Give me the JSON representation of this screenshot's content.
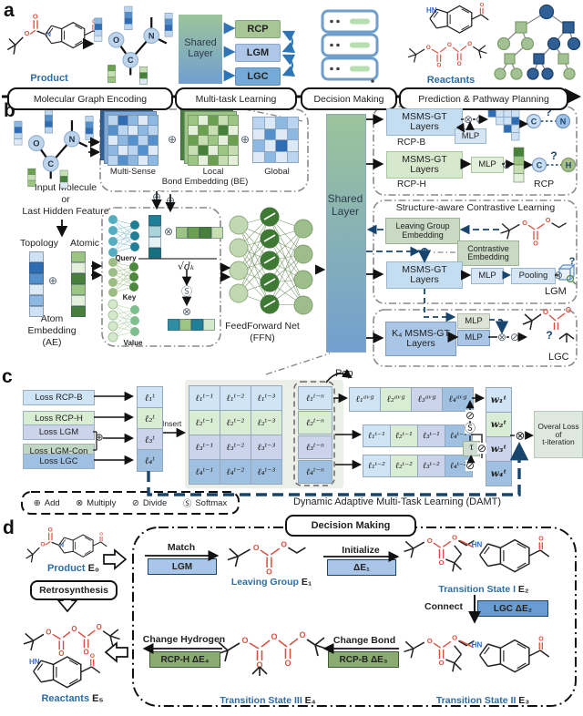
{
  "ops": {
    "add": "⊕",
    "mul": "⊗",
    "div": "⊘",
    "softmax": "Ⓢ"
  },
  "atoms": {
    "o": "O",
    "c": "C",
    "n": "N",
    "h": "H",
    "hn": "HN",
    "q": "?"
  },
  "panel_letters": {
    "a": "a",
    "b": "b",
    "c": "c",
    "d": "d"
  },
  "panel_a": {
    "product_label": "Product",
    "reactants_label": "Reactants",
    "shared_layer": "Shared Layer",
    "tasks": [
      "RCP",
      "LGM",
      "LGC"
    ],
    "pipeline": [
      "Molecular Graph Encoding",
      "Multi-task Learning",
      "Decision Making",
      "Prediction & Pathway Planning"
    ]
  },
  "panel_b": {
    "input_caption_1": "Input Molecule",
    "input_caption_2": "or",
    "input_caption_3": "Last Hidden Feature",
    "topology": "Topology",
    "atomic": "Atomic",
    "ae_caption_1": "Atom",
    "ae_caption_2": "Embedding",
    "ae_caption_3": "(AE)",
    "be": {
      "multi_sense": "Multi-Sense",
      "local": "Local",
      "global": "Global",
      "caption": "Bond Embedding (BE)"
    },
    "attn": {
      "query": "Query",
      "key": "Key",
      "value": "Value",
      "scale": "√dₖ"
    },
    "ffn_caption_1": "FeedForward Net",
    "ffn_caption_2": "(FFN)",
    "shared_layer": "Shared Layer",
    "rcp": {
      "msms_gt_b": "MSMS-GT Layers",
      "rcp_b": "RCP-B",
      "mlp_b": "MLP",
      "msms_gt_h": "MSMS-GT Layers",
      "mlp_h": "MLP",
      "rcp_h": "RCP-H",
      "rcp": "RCP"
    },
    "scl": {
      "title": "Structure-aware Contrastive Learning",
      "lg_embedding": "Leaving Group Embedding",
      "contrastive": "Contrastive Embedding",
      "msms_gt": "MSMS-GT Layers",
      "mlp": "MLP",
      "pooling": "Pooling",
      "label": "LGM"
    },
    "lgc": {
      "k4": "K₄ MSMS-GT Layers",
      "mlp_top": "MLP",
      "mlp": "MLP",
      "label": "LGC"
    }
  },
  "panel_c": {
    "losses": [
      "Loss RCP-B",
      "Loss RCP-H",
      "Loss LGM",
      "Loss LGM-Con",
      "Loss LGC"
    ],
    "lt": [
      "ℓ₁ᵗ",
      "ℓ₂ᵗ",
      "ℓ₃ᵗ",
      "ℓ₄ᵗ"
    ],
    "insert": "Insert",
    "pop": "Pop",
    "dots": "......",
    "hist": [
      [
        "ℓ₁ᵗ⁻¹",
        "ℓ₁ᵗ⁻²",
        "ℓ₁ᵗ⁻³"
      ],
      [
        "ℓ₂ᵗ⁻¹",
        "ℓ₂ᵗ⁻²",
        "ℓ₂ᵗ⁻³"
      ],
      [
        "ℓ₃ᵗ⁻¹",
        "ℓ₃ᵗ⁻²",
        "ℓ₃ᵗ⁻³"
      ],
      [
        "ℓ₄ᵗ⁻¹",
        "ℓ₄ᵗ⁻²",
        "ℓ₄ᵗ⁻³"
      ]
    ],
    "popcol": [
      "ℓ₁ᵗ⁻ⁿ",
      "ℓ₂ᵗ⁻ⁿ",
      "ℓ₃ᵗ⁻ⁿ",
      "ℓ₄ᵗ⁻ⁿ"
    ],
    "avg": [
      "ℓ₁ᵃᵛᵍ",
      "ℓ₂ᵃᵛᵍ",
      "ℓ₃ᵃᵛᵍ",
      "ℓ₄ᵃᵛᵍ"
    ],
    "tm1": [
      "ℓ₁ᵗ⁻¹",
      "ℓ₂ᵗ⁻¹",
      "ℓ₃ᵗ⁻¹",
      "ℓ₄ᵗ⁻¹"
    ],
    "tm2": [
      "ℓ₁ᵗ⁻²",
      "ℓ₂ᵗ⁻²",
      "ℓ₃ᵗ⁻²",
      "ℓ₄ᵗ⁻²"
    ],
    "w": [
      "w₁ᵗ",
      "w₂ᵗ",
      "w₃ᵗ",
      "w₄ᵗ"
    ],
    "tau": "τ",
    "overall_1": "Overal Loss",
    "overall_2": "of",
    "overall_3": "t-iteration",
    "damt": "Dynamic Adaptive Multi-Task Learning (DAMT)",
    "legend": [
      {
        "sym": "⊕",
        "label": "Add"
      },
      {
        "sym": "⊗",
        "label": "Multiply"
      },
      {
        "sym": "⊘",
        "label": "Divide"
      },
      {
        "sym": "Ⓢ",
        "label": "Softmax"
      }
    ]
  },
  "panel_d": {
    "title": "Decision Making",
    "product": "Product",
    "product_e": "E₀",
    "retrosynthesis": "Retrosynthesis",
    "reactants": "Reactants",
    "reactants_e": "E₅",
    "match": "Match",
    "lgm": "LGM",
    "leaving_group": "Leaving Group",
    "leaving_group_e": "E₁",
    "initialize": "Initialize",
    "de1": "ΔE₁",
    "ts1": "Transition State I",
    "ts1_e": "E₂",
    "connect": "Connect",
    "lgc": "LGC  ΔE₂",
    "ts2": "Transition State II",
    "ts2_e": "E₃",
    "change_bond": "Change Bond",
    "rcpb": "RCP-B  ΔE₃",
    "ts3": "Transition State III",
    "ts3_e": "E₄",
    "change_hydrogen": "Change Hydrogen",
    "rcph": "RCP-H  ΔE₄"
  },
  "colors": {
    "accent_blue": "#2e75b6",
    "navy": "#17456e",
    "task_green": "#a6c695",
    "task_lblue": "#aec6e8",
    "task_blue": "#74aad8",
    "red_atom": "#d94f3f"
  },
  "grids": {
    "blue_palette": [
      "#dde9f5",
      "#bcd5ee",
      "#8cb8e2",
      "#5490cc",
      "#2e6db4"
    ],
    "green_palette": [
      "#e4f0db",
      "#c6deb2",
      "#9cc483",
      "#6aa050",
      "#47803a"
    ],
    "multi_sense": [
      [
        1,
        4,
        2,
        0,
        2
      ],
      [
        3,
        1,
        0,
        2,
        1
      ],
      [
        0,
        2,
        3,
        1,
        3
      ],
      [
        2,
        0,
        1,
        3,
        0
      ],
      [
        1,
        3,
        2,
        0,
        2
      ]
    ],
    "local": [
      [
        2,
        0,
        3,
        1,
        2
      ],
      [
        0,
        3,
        1,
        4,
        0
      ],
      [
        3,
        1,
        2,
        0,
        3
      ],
      [
        1,
        4,
        0,
        2,
        1
      ],
      [
        2,
        0,
        3,
        1,
        0
      ]
    ],
    "global": [
      [
        1,
        0,
        2,
        1
      ],
      [
        0,
        3,
        0,
        2
      ],
      [
        2,
        0,
        4,
        0
      ],
      [
        0,
        2,
        0,
        1
      ]
    ]
  }
}
